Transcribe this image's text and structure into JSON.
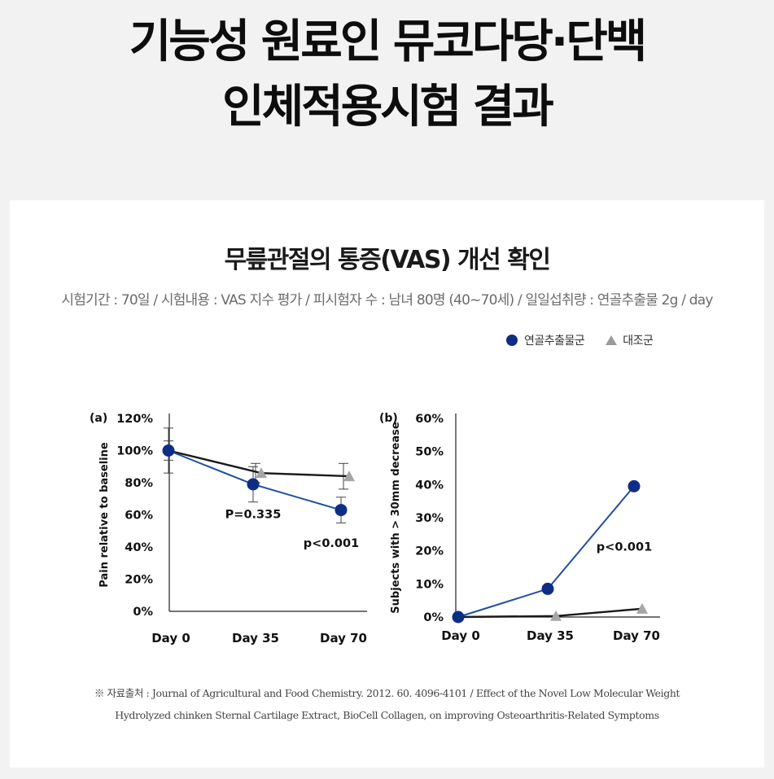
{
  "headline": {
    "line1": "기능성 원료인 뮤코다당·단백",
    "line2": "인체적용시험 결과"
  },
  "panel": {
    "title": "무릎관절의 통증(VAS) 개선 확인",
    "info": "시험기간 : 70일 / 시험내용 : VAS 지수 평가 / 피시험자 수 : 남녀 80명 (40~70세) /  일일섭취량 : 연골추출물 2g / day"
  },
  "legend": {
    "treatment": "연골추출물군",
    "control": "대조군"
  },
  "colors": {
    "treatment": "#0e2e85",
    "treatment_line": "#1f4fa3",
    "control": "#a6a6a6",
    "control_line": "#1a1a1a"
  },
  "chart_data": [
    {
      "type": "line",
      "panel_label": "(a)",
      "ylabel": "Pain relative to baseline",
      "categories": [
        "Day 0",
        "Day 35",
        "Day 70"
      ],
      "yticks": [
        "120%",
        "100%",
        "80%",
        "60%",
        "40%",
        "20%",
        "0%"
      ],
      "ylim": [
        0,
        120
      ],
      "series": [
        {
          "name": "연골추출물군",
          "values": [
            100,
            79,
            63
          ],
          "error": [
            14,
            11,
            8
          ]
        },
        {
          "name": "대조군",
          "values": [
            100,
            86,
            84
          ],
          "error": [
            6,
            6,
            8
          ]
        }
      ],
      "annotations": [
        {
          "text": "P=0.335",
          "x": "Day 35",
          "y": 58
        },
        {
          "text": "p<0.001",
          "x": "Day 70",
          "y": 40
        }
      ]
    },
    {
      "type": "line",
      "panel_label": "(b)",
      "ylabel": "Subjects with > 30mm decrease",
      "categories": [
        "Day 0",
        "Day 35",
        "Day 70"
      ],
      "yticks": [
        "60%",
        "50%",
        "40%",
        "30%",
        "20%",
        "10%",
        "0%"
      ],
      "ylim": [
        0,
        60
      ],
      "series": [
        {
          "name": "연골추출물군",
          "values": [
            0,
            8.5,
            39.5
          ]
        },
        {
          "name": "대조군",
          "values": [
            0,
            0.3,
            2.5
          ]
        }
      ],
      "annotations": [
        {
          "text": "p<0.001",
          "x": "Day 70",
          "y": 20
        }
      ]
    }
  ],
  "source": {
    "line1": "※ 자료출처 : Journal of Agricultural and Food Chemistry. 2012. 60. 4096-4101 / Effect of the Novel Low Molecular Weight",
    "line2": "Hydrolyzed chinken Sternal Cartilage Extract, BioCell Collagen, on improving Osteoarthritis-Related Symptoms"
  }
}
